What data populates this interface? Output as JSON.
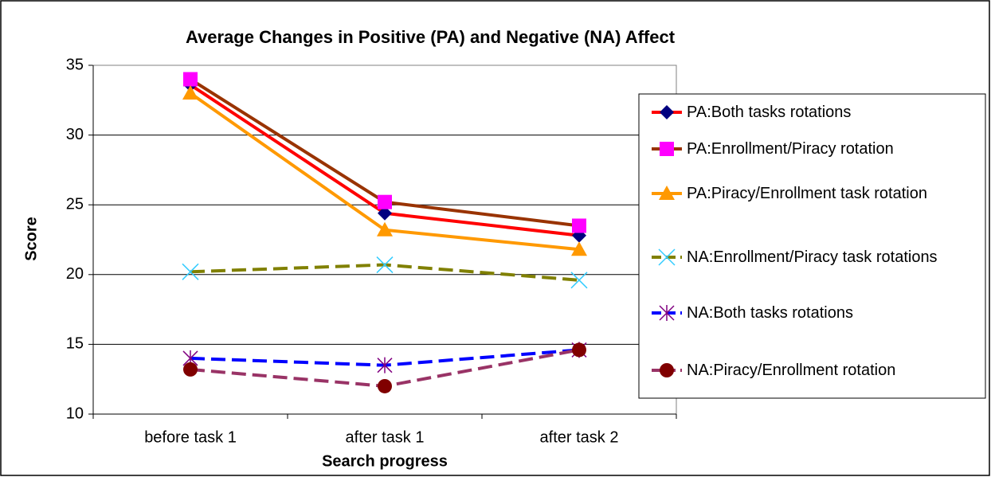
{
  "chart_data": {
    "type": "line",
    "title": "Average Changes in Positive (PA) and Negative (NA) Affect",
    "x_label": "Search progress",
    "y_label": "Score",
    "categories": [
      "before task 1",
      "after task 1",
      "after task 2"
    ],
    "ylim": [
      10,
      35
    ],
    "yticks": [
      10,
      15,
      20,
      25,
      30,
      35
    ],
    "grid": true,
    "legend": "right",
    "series": [
      {
        "name": "PA:Both tasks rotations",
        "color": "#ff0000",
        "marker": "diamond",
        "marker_color": "#000080",
        "dashed": false,
        "values": [
          33.6,
          24.4,
          22.8
        ]
      },
      {
        "name": "PA:Enrollment/Piracy rotation",
        "color": "#993300",
        "marker": "square",
        "marker_color": "#ff00ff",
        "dashed": false,
        "values": [
          34,
          25.2,
          23.5
        ]
      },
      {
        "name": "PA:Piracy/Enrollment task rotation",
        "color": "#ff9900",
        "marker": "triangle",
        "marker_color": "#ff9900",
        "dashed": false,
        "values": [
          33,
          23.2,
          21.8
        ]
      },
      {
        "name": "NA:Enrollment/Piracy task rotations",
        "color": "#808000",
        "marker": "x",
        "marker_color": "#33ccff",
        "dashed": true,
        "values": [
          20.2,
          20.7,
          19.6
        ]
      },
      {
        "name": "NA:Both tasks rotations",
        "color": "#0000ff",
        "marker": "star",
        "marker_color": "#800080",
        "dashed": true,
        "values": [
          14,
          13.5,
          14.6
        ]
      },
      {
        "name": "NA:Piracy/Enrollment rotation",
        "color": "#993366",
        "marker": "circle",
        "marker_color": "#800000",
        "dashed": true,
        "values": [
          13.2,
          12,
          14.6
        ]
      }
    ]
  }
}
